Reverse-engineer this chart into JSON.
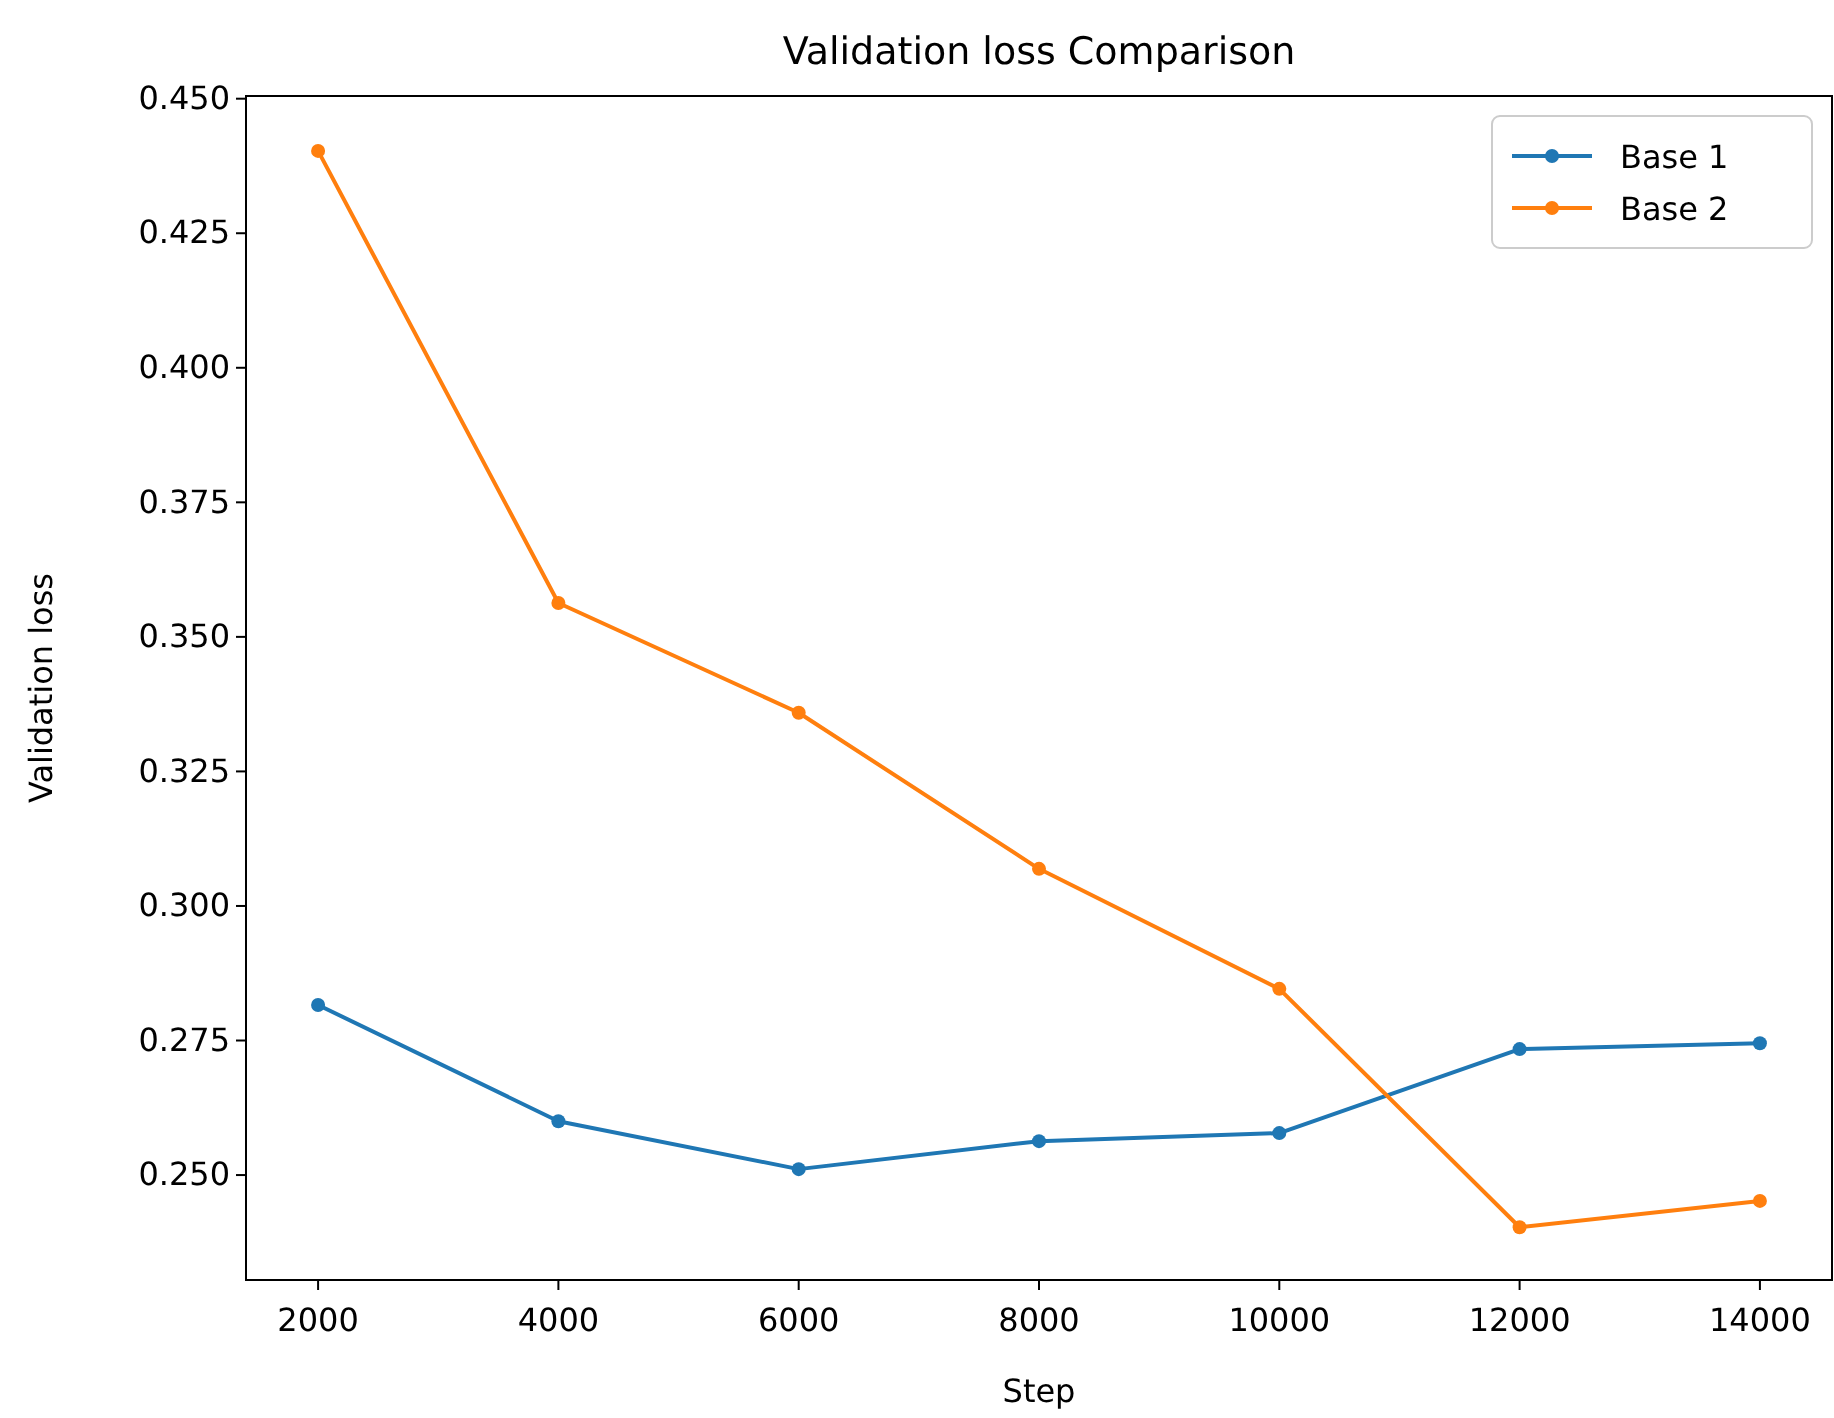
{
  "chart_data": {
    "type": "line",
    "title": "Validation loss Comparison",
    "xlabel": "Step",
    "ylabel": "Validation loss",
    "x": [
      2000,
      4000,
      6000,
      8000,
      10000,
      12000,
      14000
    ],
    "series": [
      {
        "name": "Base 1",
        "color": "#1f77b4",
        "values": [
          0.2816,
          0.26,
          0.2511,
          0.2563,
          0.2578,
          0.2734,
          0.2745
        ]
      },
      {
        "name": "Base 2",
        "color": "#ff7f0e",
        "values": [
          0.4403,
          0.3563,
          0.3359,
          0.3069,
          0.2846,
          0.2403,
          0.2452
        ]
      }
    ],
    "xlim": [
      1400,
      14600
    ],
    "xticks": [
      2000,
      4000,
      6000,
      8000,
      10000,
      12000,
      14000
    ],
    "ylim": [
      0.2305,
      0.4505
    ],
    "yticks": [
      {
        "value": 0.25,
        "label": "0.250"
      },
      {
        "value": 0.275,
        "label": "0.275"
      },
      {
        "value": 0.3,
        "label": "0.300"
      },
      {
        "value": 0.325,
        "label": "0.325"
      },
      {
        "value": 0.35,
        "label": "0.350"
      },
      {
        "value": 0.375,
        "label": "0.375"
      },
      {
        "value": 0.4,
        "label": "0.400"
      },
      {
        "value": 0.425,
        "label": "0.425"
      },
      {
        "value": 0.45,
        "label": "0.450"
      }
    ],
    "legend": "top right",
    "marker": "circle",
    "grid": false
  }
}
